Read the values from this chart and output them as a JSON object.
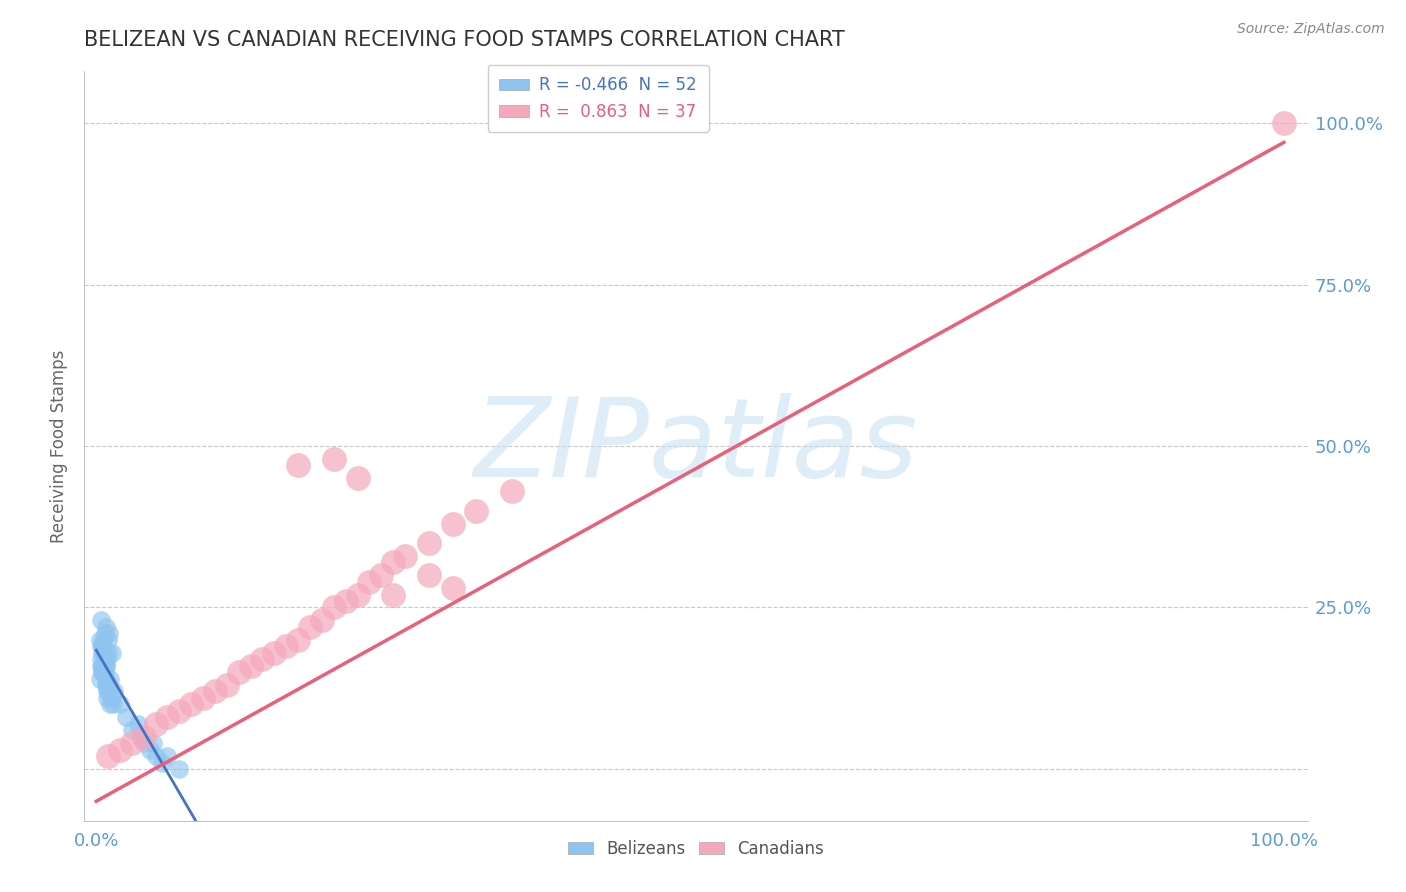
{
  "title": "BELIZEAN VS CANADIAN RECEIVING FOOD STAMPS CORRELATION CHART",
  "source_text": "Source: ZipAtlas.com",
  "ylabel": "Receiving Food Stamps",
  "watermark": "ZIPatlas",
  "x_ticks": [
    0.0,
    25.0,
    50.0,
    75.0,
    100.0
  ],
  "x_tick_labels": [
    "0.0%",
    "",
    "",
    "",
    "100.0%"
  ],
  "y_ticks": [
    0.0,
    25.0,
    50.0,
    75.0,
    100.0
  ],
  "y_tick_labels_right": [
    "",
    "25.0%",
    "50.0%",
    "75.0%",
    "100.0%"
  ],
  "xlim": [
    -1,
    102
  ],
  "ylim": [
    -8,
    108
  ],
  "belizean_color": "#8EC4EF",
  "canadian_color": "#F5A8BC",
  "belizean_line_color": "#4472C4",
  "canadian_line_color": "#E8607A",
  "legend_R_label_blue": "R = -0.466  N = 52",
  "legend_R_label_pink": "R =  0.863  N = 37",
  "belizean_scatter_x": [
    0.5,
    1.0,
    0.3,
    1.5,
    0.8,
    0.4,
    1.2,
    0.6,
    0.9,
    1.1,
    0.7,
    0.5,
    1.3,
    0.4,
    0.6,
    0.8,
    1.0,
    0.3,
    0.7,
    0.9,
    1.4,
    0.5,
    0.6,
    0.8,
    1.1,
    0.4,
    0.7,
    0.9,
    1.3,
    0.6,
    0.5,
    0.8,
    1.0,
    0.4,
    0.7,
    0.6,
    0.9,
    1.2,
    0.5,
    0.8,
    2.5,
    3.0,
    4.0,
    5.0,
    3.5,
    4.5,
    2.0,
    3.8,
    5.5,
    4.8,
    6.0,
    7.0
  ],
  "belizean_scatter_y": [
    15,
    18,
    20,
    12,
    22,
    16,
    14,
    19,
    17,
    13,
    21,
    15,
    11,
    23,
    18,
    16,
    20,
    14,
    17,
    12,
    10,
    19,
    16,
    13,
    21,
    17,
    15,
    11,
    18,
    20,
    16,
    14,
    12,
    19,
    17,
    15,
    13,
    10,
    18,
    16,
    8,
    6,
    4,
    2,
    7,
    3,
    10,
    5,
    1,
    4,
    2,
    0
  ],
  "canadian_scatter_x": [
    1,
    2,
    3,
    4,
    5,
    6,
    7,
    8,
    9,
    10,
    11,
    12,
    13,
    14,
    15,
    16,
    17,
    18,
    19,
    20,
    21,
    22,
    23,
    24,
    25,
    26,
    28,
    30,
    32,
    35,
    17,
    20,
    22,
    100,
    25,
    28,
    30
  ],
  "canadian_scatter_y": [
    2,
    3,
    4,
    5,
    7,
    8,
    9,
    10,
    11,
    12,
    13,
    15,
    16,
    17,
    18,
    19,
    20,
    22,
    23,
    25,
    26,
    27,
    29,
    30,
    32,
    33,
    35,
    38,
    40,
    43,
    47,
    48,
    45,
    100,
    27,
    30,
    28
  ],
  "background_color": "#FFFFFF",
  "grid_color": "#C8C8C8",
  "title_color": "#333333",
  "axis_label_color": "#666666",
  "tick_color": "#5B9BD5"
}
